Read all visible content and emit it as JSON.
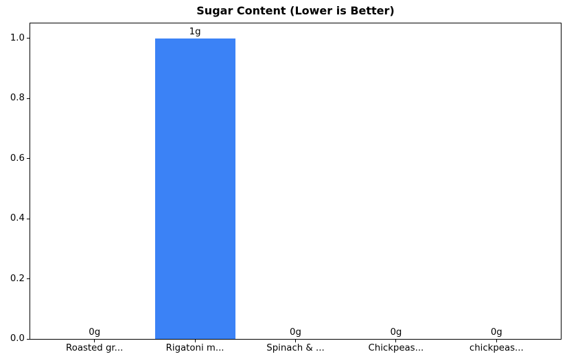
{
  "chart_data": {
    "type": "bar",
    "title": "Sugar Content (Lower is Better)",
    "categories": [
      "Roasted gr...",
      "Rigatoni m...",
      "Spinach & ...",
      "Chickpeas...",
      "chickpeas..."
    ],
    "values": [
      0,
      1,
      0,
      0,
      0
    ],
    "bar_labels": [
      "0g",
      "1g",
      "0g",
      "0g",
      "0g"
    ],
    "bar_color": "#3b82f6",
    "bar_width": 0.8,
    "xlabel": "",
    "ylabel": "",
    "xlim": [
      -0.64,
      4.64
    ],
    "ylim": [
      0,
      1.05
    ],
    "ytick_values": [
      0.0,
      0.2,
      0.4,
      0.6,
      0.8,
      1.0
    ],
    "ytick_labels": [
      "0.0",
      "0.2",
      "0.4",
      "0.6",
      "0.8",
      "1.0"
    ],
    "grid": false,
    "legend": null,
    "spine_color": "#000000",
    "background_color": "#ffffff"
  }
}
